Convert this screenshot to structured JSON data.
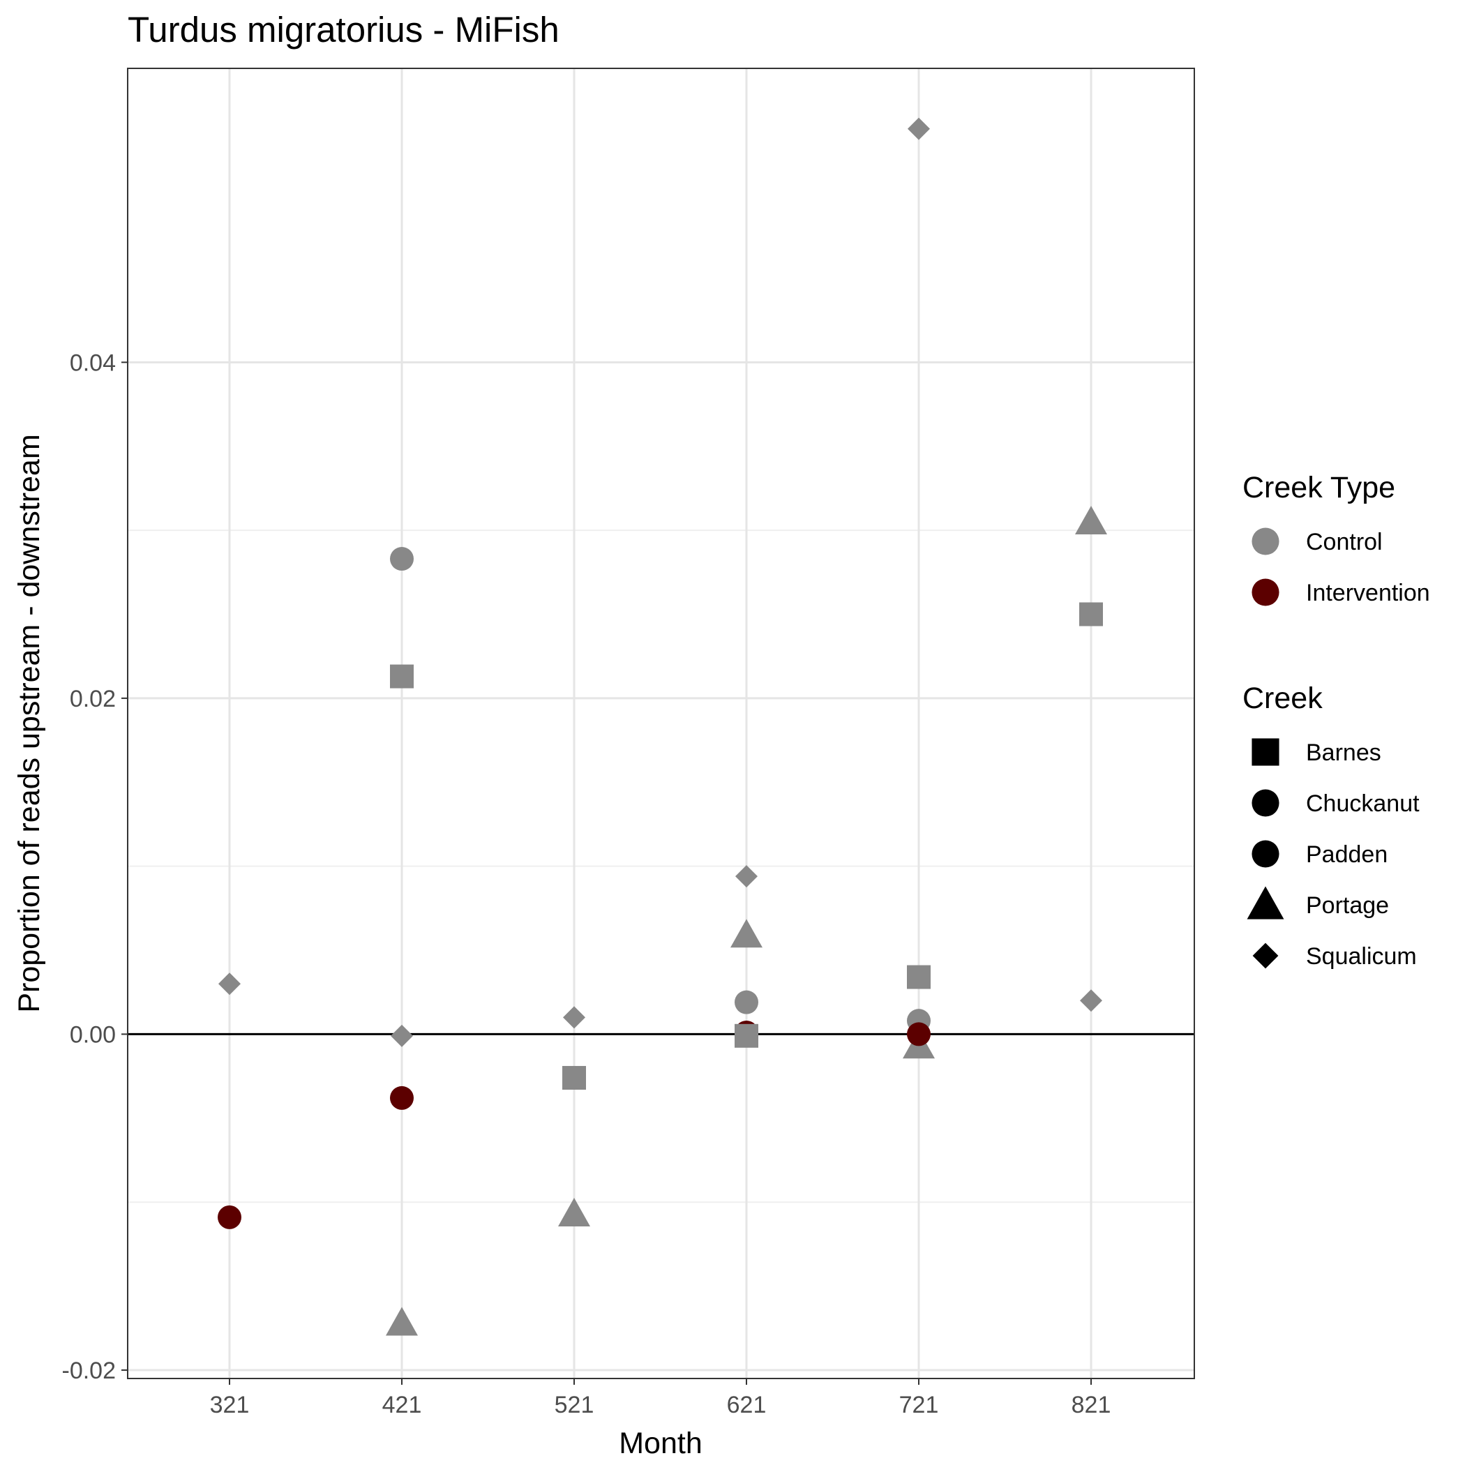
{
  "chart_data": {
    "type": "scatter",
    "title": "Turdus migratorius - MiFish",
    "xlabel": "Month",
    "ylabel": "Proportion of reads upstream - downstream",
    "categories": [
      "321",
      "421",
      "521",
      "621",
      "721",
      "821"
    ],
    "y_ticks": [
      -0.02,
      0.0,
      0.02,
      0.04
    ],
    "y_tick_labels": [
      "-0.02",
      "0.00",
      "0.02",
      "0.04"
    ],
    "ylim": [
      -0.0205,
      0.0575
    ],
    "grid": true,
    "hline_y": 0,
    "legend_position": "right",
    "colors": {
      "Control": "#888888",
      "Intervention": "#5c0000"
    },
    "legend_color": {
      "title": "Creek Type",
      "entries": [
        {
          "label": "Control",
          "color": "#888888"
        },
        {
          "label": "Intervention",
          "color": "#5c0000"
        }
      ]
    },
    "legend_shape": {
      "title": "Creek",
      "entries": [
        {
          "label": "Barnes",
          "shape": "square"
        },
        {
          "label": "Chuckanut",
          "shape": "circle"
        },
        {
          "label": "Padden",
          "shape": "circle"
        },
        {
          "label": "Portage",
          "shape": "triangle"
        },
        {
          "label": "Squalicum",
          "shape": "diamond"
        }
      ]
    },
    "points": [
      {
        "x": "321",
        "creek": "Squalicum",
        "type": "Control",
        "y": 0.003
      },
      {
        "x": "321",
        "creek": "Padden",
        "type": "Intervention",
        "y": -0.0109
      },
      {
        "x": "421",
        "creek": "Chuckanut",
        "type": "Control",
        "y": 0.0283
      },
      {
        "x": "421",
        "creek": "Barnes",
        "type": "Control",
        "y": 0.0213
      },
      {
        "x": "421",
        "creek": "Squalicum",
        "type": "Control",
        "y": -0.0001
      },
      {
        "x": "421",
        "creek": "Padden",
        "type": "Intervention",
        "y": -0.0038
      },
      {
        "x": "421",
        "creek": "Portage",
        "type": "Control",
        "y": -0.0172
      },
      {
        "x": "521",
        "creek": "Squalicum",
        "type": "Control",
        "y": 0.001
      },
      {
        "x": "521",
        "creek": "Barnes",
        "type": "Control",
        "y": -0.0026
      },
      {
        "x": "521",
        "creek": "Portage",
        "type": "Control",
        "y": -0.0107
      },
      {
        "x": "621",
        "creek": "Squalicum",
        "type": "Control",
        "y": 0.0094
      },
      {
        "x": "621",
        "creek": "Portage",
        "type": "Control",
        "y": 0.0059
      },
      {
        "x": "621",
        "creek": "Chuckanut",
        "type": "Control",
        "y": 0.0019
      },
      {
        "x": "621",
        "creek": "Padden",
        "type": "Intervention",
        "y": 0.0001
      },
      {
        "x": "621",
        "creek": "Barnes",
        "type": "Control",
        "y": -0.0001
      },
      {
        "x": "721",
        "creek": "Squalicum",
        "type": "Control",
        "y": 0.0539
      },
      {
        "x": "721",
        "creek": "Barnes",
        "type": "Control",
        "y": 0.0034
      },
      {
        "x": "721",
        "creek": "Chuckanut",
        "type": "Control",
        "y": 0.0008
      },
      {
        "x": "721",
        "creek": "Portage",
        "type": "Control",
        "y": -0.0007
      },
      {
        "x": "721",
        "creek": "Padden",
        "type": "Intervention",
        "y": 0.0
      },
      {
        "x": "821",
        "creek": "Portage",
        "type": "Control",
        "y": 0.0305
      },
      {
        "x": "821",
        "creek": "Barnes",
        "type": "Control",
        "y": 0.025
      },
      {
        "x": "821",
        "creek": "Squalicum",
        "type": "Control",
        "y": 0.002
      }
    ]
  }
}
